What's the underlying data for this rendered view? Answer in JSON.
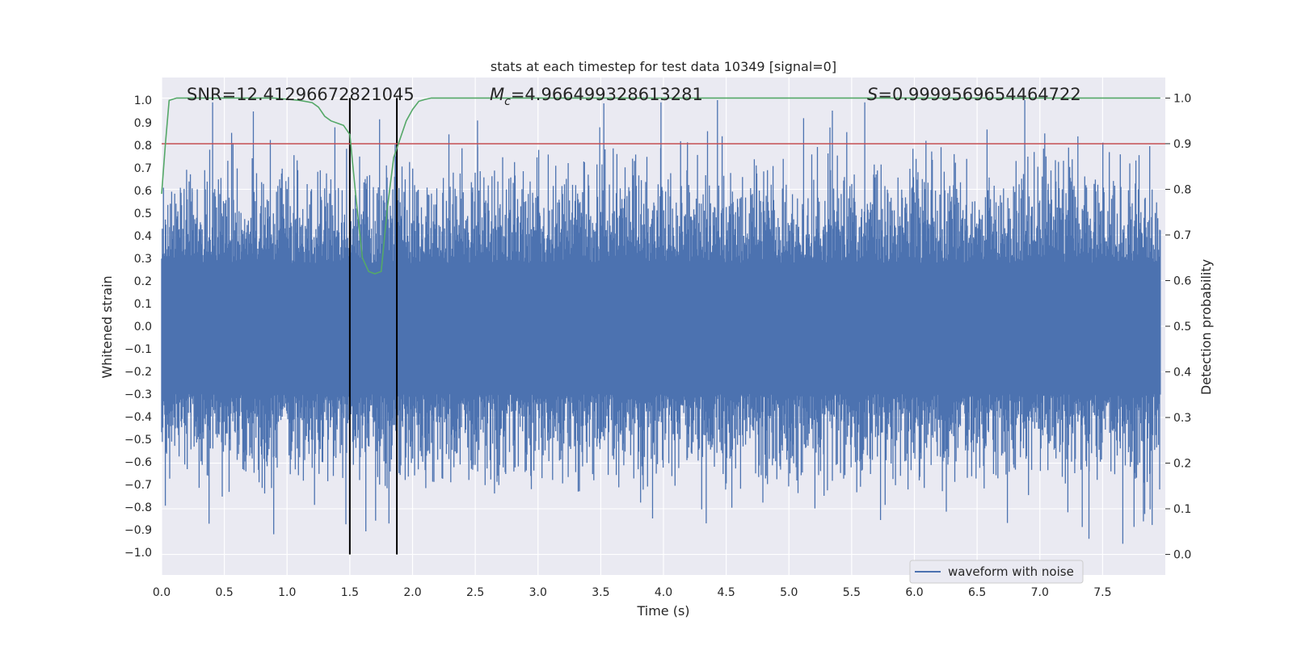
{
  "chart_data": {
    "type": "line",
    "title": "stats at each timestep for test data 10349 [signal=0]",
    "xlabel": "Time (s)",
    "ylabel_left": "Whitened strain",
    "ylabel_right": "Detection probability",
    "xlim": [
      0.0,
      8.0
    ],
    "ylim_left": [
      -1.1,
      1.1
    ],
    "ylim_right": [
      -0.045,
      1.045
    ],
    "x_ticks": [
      "0.0",
      "0.5",
      "1.0",
      "1.5",
      "2.0",
      "2.5",
      "3.0",
      "3.5",
      "4.0",
      "4.5",
      "5.0",
      "5.5",
      "6.0",
      "6.5",
      "7.0",
      "7.5"
    ],
    "y_ticks_left": [
      "1.0",
      "0.9",
      "0.8",
      "0.7",
      "0.6",
      "0.5",
      "0.4",
      "0.3",
      "0.2",
      "0.1",
      "0.0",
      "-0.1",
      "-0.2",
      "-0.3",
      "-0.4",
      "-0.5",
      "-0.6",
      "-0.7",
      "-0.8",
      "-0.9",
      "-1.0"
    ],
    "y_ticks_right": [
      "1.0",
      "0.9",
      "0.8",
      "0.7",
      "0.6",
      "0.5",
      "0.4",
      "0.3",
      "0.2",
      "0.1",
      "0.0"
    ],
    "grid": true,
    "legend": {
      "position": "lower-right",
      "entries": [
        "waveform with noise"
      ]
    },
    "annotations": {
      "snr": "SNR=12.41296672821045",
      "mc_symbol": "M",
      "mc_sub": "c",
      "mc_value": "=4.966499328613281",
      "s_symbol": "S",
      "s_value": "=0.9999569654464722"
    },
    "threshold_line": {
      "axis": "right",
      "value": 0.9,
      "color": "#c44e52"
    },
    "vertical_lines": [
      1.5,
      1.875
    ],
    "colors": {
      "waveform": "#4c72b0",
      "probability": "#55a868",
      "threshold": "#c44e52",
      "vlines": "#000000",
      "plot_bg": "#eaeaf2"
    },
    "series": [
      {
        "name": "waveform with noise",
        "axis": "left",
        "description_values": "dense noisy strain sampled over 0-8 s, amplitude mostly within +/-0.6, peaks near 1.0",
        "x_range": [
          0.0,
          7.96
        ],
        "values": [
          0.32,
          0.61,
          0.99,
          0.81,
          0.95,
          -0.92,
          0.62,
          -0.79,
          0.88,
          0.58,
          -0.86,
          0.75,
          0.55,
          0.61,
          -0.56,
          0.91,
          0.64,
          -0.62,
          0.78,
          0.56,
          -0.73,
          0.88,
          0.61,
          -0.78,
          0.99,
          0.62,
          -0.81,
          0.84,
          0.66,
          -0.78,
          0.74,
          0.92,
          -0.75,
          0.66,
          0.99,
          -0.79,
          0.57,
          0.82,
          -0.82,
          0.74,
          0.87,
          -0.87,
          0.75,
          0.63,
          0.79,
          -0.94,
          0.77,
          0.72,
          -0.81
        ]
      },
      {
        "name": "",
        "axis": "right",
        "x": [
          0.0,
          0.03,
          0.06,
          0.12,
          0.2,
          0.5,
          0.9,
          1.1,
          1.2,
          1.25,
          1.3,
          1.35,
          1.4,
          1.45,
          1.5,
          1.55,
          1.6,
          1.65,
          1.7,
          1.75,
          1.8,
          1.85,
          1.9,
          1.95,
          2.0,
          2.05,
          2.1,
          2.15,
          2.3,
          2.6,
          3.0,
          4.0,
          5.0,
          6.0,
          7.0,
          7.96
        ],
        "values": [
          0.79,
          0.9,
          0.995,
          1.0,
          1.0,
          1.0,
          1.0,
          0.995,
          0.99,
          0.98,
          0.96,
          0.95,
          0.945,
          0.94,
          0.92,
          0.78,
          0.65,
          0.62,
          0.615,
          0.62,
          0.76,
          0.87,
          0.91,
          0.95,
          0.975,
          0.993,
          0.997,
          1.0,
          1.0,
          1.0,
          1.0,
          1.0,
          1.0,
          1.0,
          1.0,
          1.0
        ]
      }
    ]
  }
}
